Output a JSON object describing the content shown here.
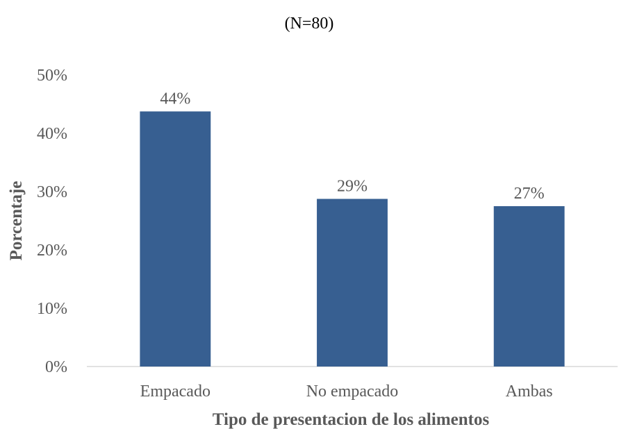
{
  "chart_data": {
    "type": "bar",
    "title": "(N=80)",
    "xlabel": "Tipo de presentacion de los alimentos",
    "ylabel": "Porcentaje",
    "categories": [
      "Empacado",
      "No empacado",
      "Ambas"
    ],
    "values": [
      43.75,
      28.75,
      27.5
    ],
    "data_labels": [
      "44%",
      "29%",
      "27%"
    ],
    "ylim": [
      0,
      50
    ],
    "yticks": [
      "0%",
      "10%",
      "20%",
      "30%",
      "40%",
      "50%"
    ],
    "bar_color": "#375F91",
    "grid": false,
    "legend": "none"
  }
}
